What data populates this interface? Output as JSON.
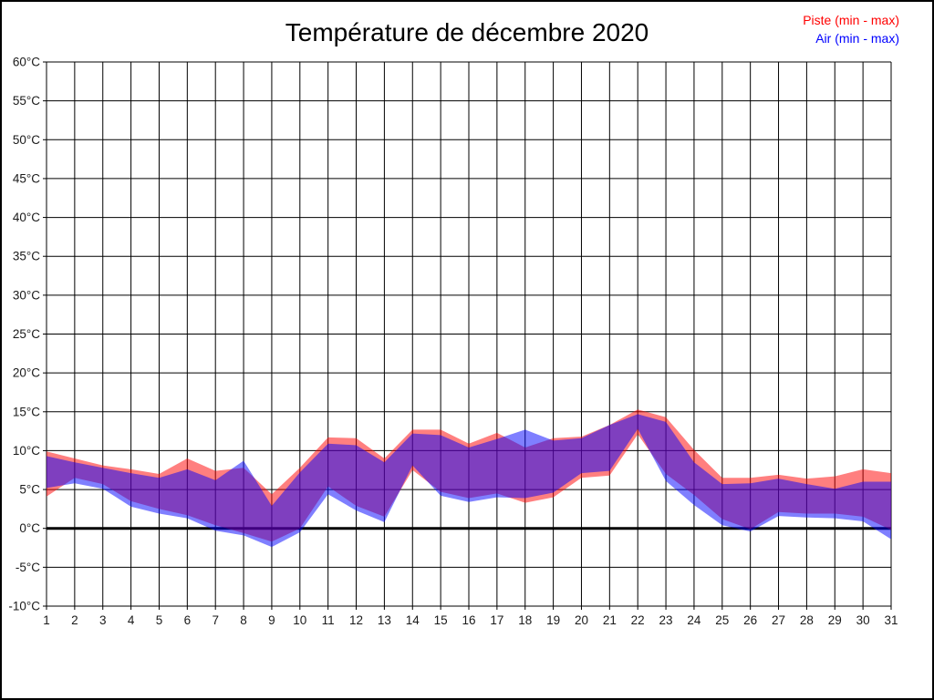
{
  "title": "Température de décembre 2020",
  "legend": [
    {
      "label": "Piste (min - max)",
      "color": "#ff0000"
    },
    {
      "label": "Air (min - max)",
      "color": "#0000ff"
    }
  ],
  "chart_data": {
    "type": "area",
    "title": "Température de décembre 2020",
    "xlabel": "",
    "ylabel": "°C",
    "x": [
      1,
      2,
      3,
      4,
      5,
      6,
      7,
      8,
      9,
      10,
      11,
      12,
      13,
      14,
      15,
      16,
      17,
      18,
      19,
      20,
      21,
      22,
      23,
      24,
      25,
      26,
      27,
      28,
      29,
      30,
      31
    ],
    "ylim": [
      -10,
      60
    ],
    "y_tick_step": 5,
    "y_tick_labels": [
      "-10°C",
      "-5°C",
      "0°C",
      "5°C",
      "10°C",
      "15°C",
      "20°C",
      "25°C",
      "30°C",
      "35°C",
      "40°C",
      "45°C",
      "50°C",
      "55°C",
      "60°C"
    ],
    "grid": true,
    "zero_line_thick": true,
    "legend_position": "top-right",
    "series": [
      {
        "name": "Piste (min - max)",
        "color": "#ff0000",
        "fill_opacity": 0.5,
        "min": [
          4.1,
          6.5,
          5.7,
          3.5,
          2.5,
          1.7,
          0.4,
          -0.6,
          -1.7,
          0.0,
          5.4,
          2.9,
          1.5,
          7.5,
          4.7,
          3.9,
          4.5,
          3.3,
          4.0,
          6.5,
          6.8,
          12.1,
          7.0,
          4.3,
          1.2,
          -0.1,
          2.1,
          1.9,
          1.9,
          1.5,
          -0.2
        ],
        "max": [
          9.9,
          9.0,
          8.1,
          7.6,
          7.0,
          9.0,
          7.4,
          7.8,
          4.4,
          7.8,
          11.7,
          11.6,
          9.0,
          12.7,
          12.7,
          10.9,
          12.3,
          10.4,
          11.6,
          11.8,
          13.3,
          15.3,
          14.3,
          10.1,
          6.5,
          6.5,
          6.9,
          6.4,
          6.7,
          7.6,
          7.1
        ]
      },
      {
        "name": "Air (min - max)",
        "color": "#0000ff",
        "fill_opacity": 0.5,
        "min": [
          5.2,
          5.8,
          5.1,
          2.8,
          1.9,
          1.3,
          -0.3,
          -0.9,
          -2.4,
          -0.5,
          4.4,
          2.3,
          0.8,
          8.1,
          4.2,
          3.4,
          4.0,
          3.9,
          4.6,
          7.1,
          7.4,
          12.8,
          6.1,
          3.0,
          0.4,
          -0.4,
          1.6,
          1.4,
          1.3,
          0.9,
          -1.4
        ],
        "max": [
          9.3,
          8.5,
          7.8,
          7.1,
          6.5,
          7.6,
          6.2,
          8.7,
          2.9,
          7.2,
          10.9,
          10.7,
          8.5,
          12.2,
          12.0,
          10.4,
          11.5,
          12.7,
          11.3,
          11.6,
          13.3,
          14.7,
          13.7,
          8.5,
          5.7,
          5.8,
          6.4,
          5.7,
          5.1,
          6.0,
          6.0
        ]
      }
    ]
  }
}
